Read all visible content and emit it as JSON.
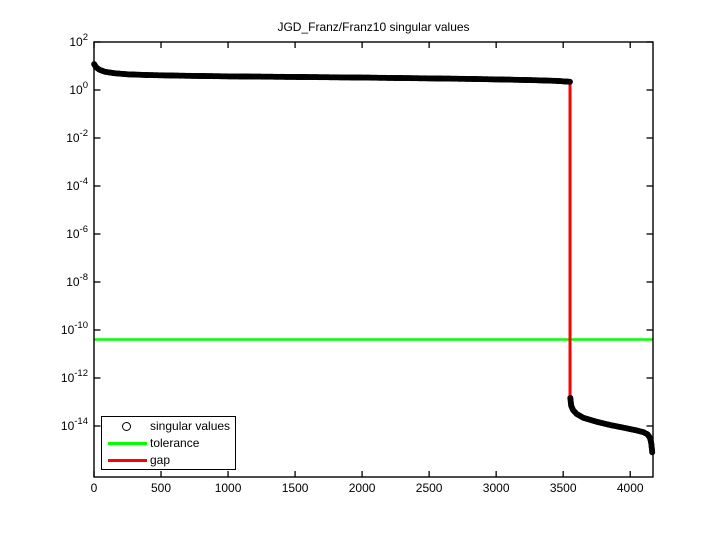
{
  "window": {
    "background": "#FFFFFF"
  },
  "chart_data": {
    "type": "scatter",
    "title": "JGD_Franz/Franz10 singular values",
    "xlabel": "",
    "ylabel": "",
    "grid": false,
    "x_axis": {
      "min": 0,
      "max": 4170,
      "ticks": [
        0,
        500,
        1000,
        1500,
        2000,
        2500,
        3000,
        3500,
        4000
      ]
    },
    "y_axis": {
      "scale": "log10",
      "top_exponent": 2,
      "bottom_exponent": -16.1,
      "tick_label_base": "10",
      "tick_exponents": [
        2,
        0,
        -2,
        -4,
        -6,
        -8,
        -10,
        -12,
        -14
      ]
    },
    "series": [
      {
        "name": "singular values",
        "marker": "circle",
        "color": "#000000",
        "segments": [
          [
            [
              1,
              12.0
            ],
            [
              15,
              9.0
            ],
            [
              40,
              7.0
            ],
            [
              80,
              5.8
            ],
            [
              150,
              5.0
            ],
            [
              250,
              4.5
            ],
            [
              400,
              4.2
            ],
            [
              700,
              3.9
            ],
            [
              1000,
              3.7
            ],
            [
              1500,
              3.5
            ],
            [
              2000,
              3.3
            ],
            [
              2500,
              3.05
            ],
            [
              2800,
              2.9
            ],
            [
              3100,
              2.7
            ],
            [
              3300,
              2.55
            ],
            [
              3450,
              2.4
            ],
            [
              3551,
              2.2
            ]
          ],
          [
            [
              3553,
              1.5e-13
            ],
            [
              3560,
              7e-14
            ],
            [
              3575,
              4.5e-14
            ],
            [
              3600,
              3.2e-14
            ],
            [
              3650,
              2.2e-14
            ],
            [
              3750,
              1.5e-14
            ],
            [
              3850,
              1.1e-14
            ],
            [
              3950,
              8.5e-15
            ],
            [
              4050,
              6.5e-15
            ],
            [
              4100,
              5.5e-15
            ],
            [
              4130,
              4.5e-15
            ],
            [
              4148,
              3.2e-15
            ],
            [
              4158,
              1.8e-15
            ],
            [
              4164,
              8e-16
            ]
          ]
        ]
      },
      {
        "name": "tolerance",
        "style": "hline",
        "color": "#00FF00",
        "value": 4e-11
      },
      {
        "name": "gap",
        "style": "vline",
        "color": "#FF0000",
        "x": 3551,
        "from": 2.2,
        "to": 1.5e-13
      }
    ],
    "legend": {
      "position": "bottom-left",
      "entries": [
        {
          "label": "singular values",
          "glyph": "circle-marker",
          "color": "#000000"
        },
        {
          "label": "tolerance",
          "glyph": "line",
          "color": "#00FF00"
        },
        {
          "label": "gap",
          "glyph": "line",
          "color": "#FF0000"
        }
      ]
    }
  }
}
